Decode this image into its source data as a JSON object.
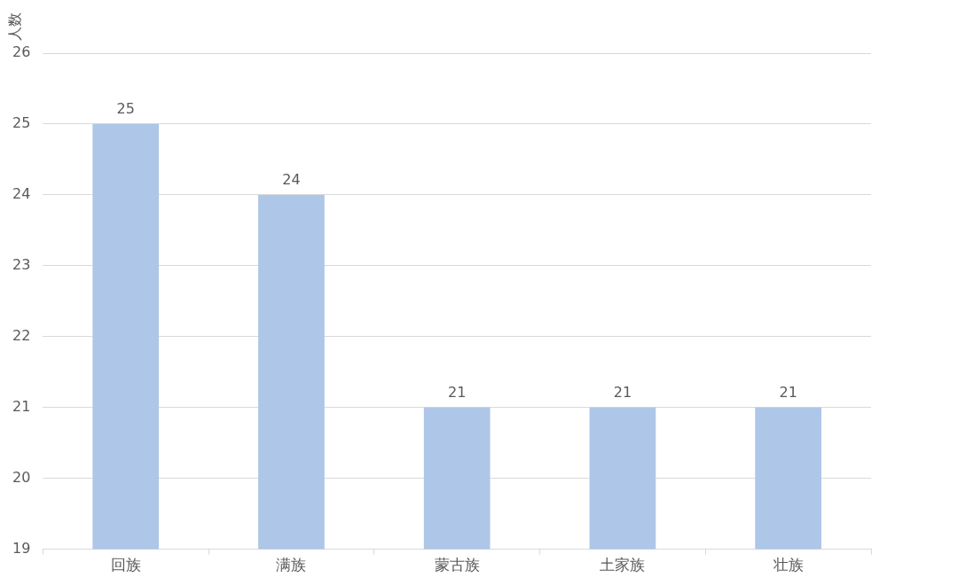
{
  "chart_data": {
    "type": "bar",
    "ylabel": "人数",
    "categories": [
      "回族",
      "满族",
      "蒙古族",
      "土家族",
      "壮族"
    ],
    "values": [
      25,
      24,
      21,
      21,
      21
    ],
    "color": "#aec6e8",
    "ylim": [
      19,
      26
    ],
    "yticks": [
      19,
      20,
      21,
      22,
      23,
      24,
      25,
      26
    ],
    "grid": "y",
    "data_labels": true
  }
}
